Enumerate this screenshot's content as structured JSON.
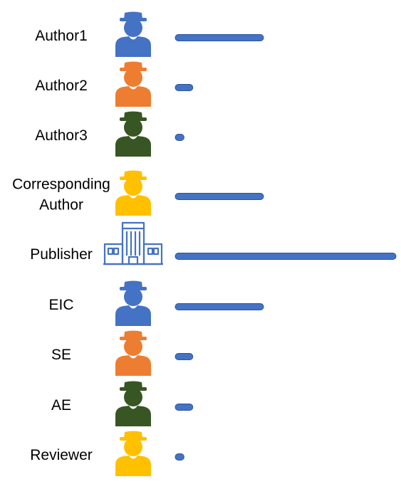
{
  "colors": {
    "blue": "#4472C4",
    "orange": "#ED7D31",
    "green": "#375623",
    "gold": "#FFC000",
    "bar_fill": "#4472C4",
    "bar_stroke": "#2F5597"
  },
  "rows": [
    {
      "label": [
        "Author1"
      ],
      "icon": "person-icon",
      "color": "blue",
      "bar_level": 0.4
    },
    {
      "label": [
        "Author2"
      ],
      "icon": "person-icon",
      "color": "orange",
      "bar_level": 0.08
    },
    {
      "label": [
        "Author3"
      ],
      "icon": "person-icon",
      "color": "green",
      "bar_level": 0.04
    },
    {
      "label": [
        "Corresponding",
        "Author"
      ],
      "icon": "person-icon",
      "color": "gold",
      "bar_level": 0.4
    },
    {
      "label": [
        "Publisher"
      ],
      "icon": "building-icon",
      "color": "blue",
      "bar_level": 1.0
    },
    {
      "label": [
        "EIC"
      ],
      "icon": "person-icon",
      "color": "blue",
      "bar_level": 0.4
    },
    {
      "label": [
        "SE"
      ],
      "icon": "person-icon",
      "color": "orange",
      "bar_level": 0.08
    },
    {
      "label": [
        "AE"
      ],
      "icon": "person-icon",
      "color": "green",
      "bar_level": 0.08
    },
    {
      "label": [
        "Reviewer"
      ],
      "icon": "person-icon",
      "color": "gold",
      "bar_level": 0.04
    }
  ]
}
